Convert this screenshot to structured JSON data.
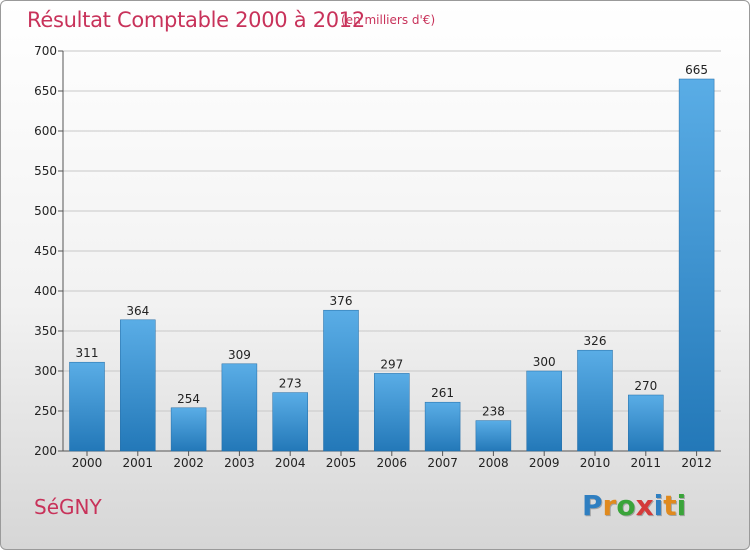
{
  "header": {
    "title": "Résultat Comptable 2000 à 2012",
    "unit": "(en milliers d'€)"
  },
  "footer": {
    "city": "SéGNY",
    "logo": [
      "P",
      "r",
      "o",
      "x",
      "i",
      "t",
      "i"
    ],
    "logo_colors": [
      "#2f7fc1",
      "#e08a1e",
      "#3aa43a",
      "#d43a3a",
      "#2f7fc1",
      "#e08a1e",
      "#3aa43a"
    ]
  },
  "colors": {
    "bar_top": "#5aade6",
    "bar_bottom": "#2378b8",
    "grid": "#c8c8c8",
    "title": "#c8325a"
  },
  "chart_data": {
    "type": "bar",
    "title": "Résultat Comptable 2000 à 2012",
    "subtitle": "(en milliers d'€)",
    "xlabel": "",
    "ylabel": "",
    "categories": [
      "2000",
      "2001",
      "2002",
      "2003",
      "2004",
      "2005",
      "2006",
      "2007",
      "2008",
      "2009",
      "2010",
      "2011",
      "2012"
    ],
    "values": [
      311,
      364,
      254,
      309,
      273,
      376,
      297,
      261,
      238,
      300,
      326,
      270,
      665
    ],
    "ylim": [
      200,
      700
    ],
    "yticks": [
      200,
      250,
      300,
      350,
      400,
      450,
      500,
      550,
      600,
      650,
      700
    ],
    "grid": true
  }
}
